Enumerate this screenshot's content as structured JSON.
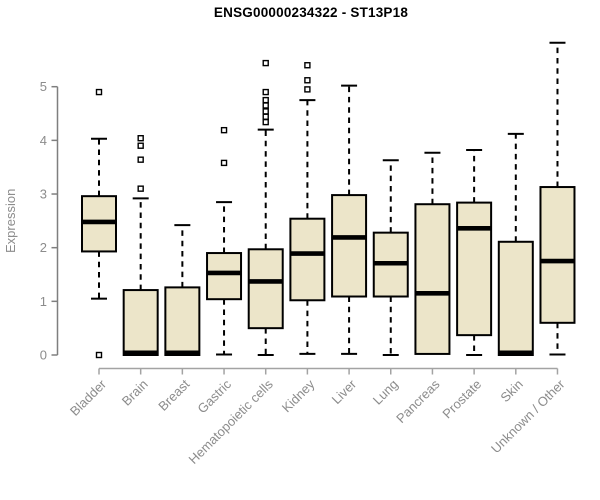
{
  "title": "ENSG00000234322 - ST13P18",
  "chart_data": {
    "type": "boxplot",
    "title": "ENSG00000234322 - ST13P18",
    "xlabel": "",
    "ylabel": "Expression",
    "ylim": [
      0,
      5
    ],
    "yticks": [
      0,
      1,
      2,
      3,
      4,
      5
    ],
    "grid": false,
    "legend": "none",
    "categories": [
      "Bladder",
      "Brain",
      "Breast",
      "Gastric",
      "Hematopoietic cells",
      "Kidney",
      "Liver",
      "Lung",
      "Pancreas",
      "Prostate",
      "Skin",
      "Unknown / Other"
    ],
    "series": [
      {
        "name": "Bladder",
        "low": 1.05,
        "q1": 1.93,
        "median": 2.48,
        "q3": 2.96,
        "high": 4.03,
        "outliers": [
          4.9,
          0
        ]
      },
      {
        "name": "Brain",
        "low": 0.0,
        "q1": 0.0,
        "median": 0.04,
        "q3": 1.21,
        "high": 2.92,
        "outliers": [
          4.04,
          3.9,
          3.64,
          3.1
        ]
      },
      {
        "name": "Breast",
        "low": 0.0,
        "q1": 0.0,
        "median": 0.04,
        "q3": 1.26,
        "high": 2.42,
        "outliers": []
      },
      {
        "name": "Gastric",
        "low": 0.01,
        "q1": 1.04,
        "median": 1.53,
        "q3": 1.9,
        "high": 2.85,
        "outliers": [
          4.19,
          3.58
        ]
      },
      {
        "name": "Hematopoietic cells",
        "low": 0.0,
        "q1": 0.5,
        "median": 1.37,
        "q3": 1.97,
        "high": 4.2,
        "outliers": [
          5.44,
          4.9,
          4.75,
          4.65,
          4.54,
          4.44,
          4.34
        ]
      },
      {
        "name": "Kidney",
        "low": 0.02,
        "q1": 1.02,
        "median": 1.89,
        "q3": 2.54,
        "high": 4.75,
        "outliers": [
          5.4,
          5.12,
          4.95
        ]
      },
      {
        "name": "Liver",
        "low": 0.02,
        "q1": 1.09,
        "median": 2.19,
        "q3": 2.98,
        "high": 5.02,
        "outliers": []
      },
      {
        "name": "Lung",
        "low": 0.0,
        "q1": 1.09,
        "median": 1.71,
        "q3": 2.28,
        "high": 3.63,
        "outliers": []
      },
      {
        "name": "Pancreas",
        "low": 0.0,
        "q1": 0.02,
        "median": 1.15,
        "q3": 2.81,
        "high": 3.77,
        "outliers": []
      },
      {
        "name": "Prostate",
        "low": 0.0,
        "q1": 0.37,
        "median": 2.36,
        "q3": 2.84,
        "high": 3.82,
        "outliers": []
      },
      {
        "name": "Skin",
        "low": 0.0,
        "q1": 0.0,
        "median": 0.04,
        "q3": 2.11,
        "high": 4.12,
        "outliers": []
      },
      {
        "name": "Unknown / Other",
        "low": 0.01,
        "q1": 0.6,
        "median": 1.75,
        "q3": 3.13,
        "high": 5.82,
        "outliers": []
      }
    ],
    "colors": {
      "box_fill": "#ece5c9",
      "box_stroke": "#000000",
      "median": "#000000",
      "y_axis": "#7f7f7f",
      "x_axis": "#a3a3a3",
      "text": "#8c8c8c",
      "title": "#000000",
      "outlier_fill": "#ffffff"
    }
  }
}
